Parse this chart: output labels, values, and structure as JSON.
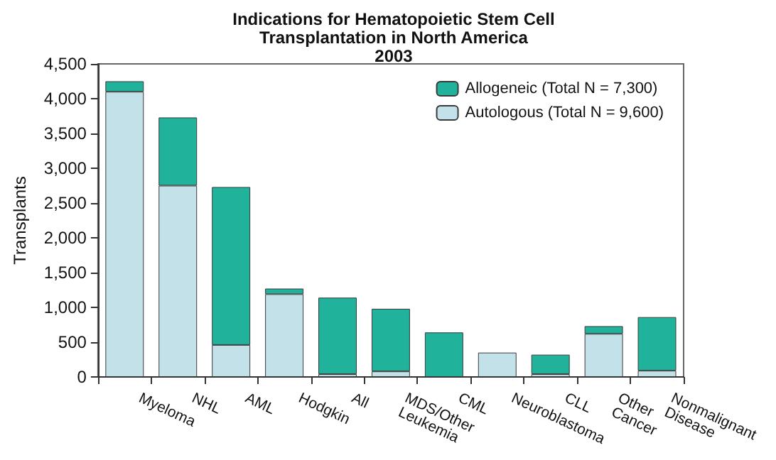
{
  "chart_data": {
    "type": "bar",
    "title": "Indications for Hematopoietic Stem Cell\nTransplantation in North America\n2003",
    "ylabel": "Transplants",
    "categories": [
      "Myeloma",
      "NHL",
      "AML",
      "Hodgkin",
      "All",
      "MDS/Other\nLeukemia",
      "CML",
      "Neuroblastoma",
      "CLL",
      "Other\nCancer",
      "Nonmalignant\nDisease"
    ],
    "series": [
      {
        "name": "Autologous (Total N = 9,600)",
        "color": "#c2e1e8",
        "values": [
          4100,
          2750,
          460,
          1190,
          40,
          80,
          0,
          350,
          40,
          620,
          90
        ]
      },
      {
        "name": "Allogeneic (Total N = 7,300)",
        "color": "#20b29a",
        "values": [
          150,
          980,
          2270,
          80,
          1100,
          900,
          640,
          0,
          280,
          110,
          770
        ]
      }
    ],
    "stacked": true,
    "ylim": [
      0,
      4500
    ],
    "yticks": [
      0,
      500,
      {
        "value": 1000,
        "label": "1,000"
      },
      {
        "value": 1500,
        "label": "1,500"
      },
      {
        "value": 2000,
        "label": "2,000"
      },
      {
        "value": 2500,
        "label": "2,500"
      },
      {
        "value": 3000,
        "label": "3,000"
      },
      {
        "value": 3500,
        "label": "3,500"
      },
      {
        "value": 4000,
        "label": "4,000"
      },
      {
        "value": 4500,
        "label": "4,500"
      }
    ],
    "grid": false,
    "legend": "top right"
  }
}
